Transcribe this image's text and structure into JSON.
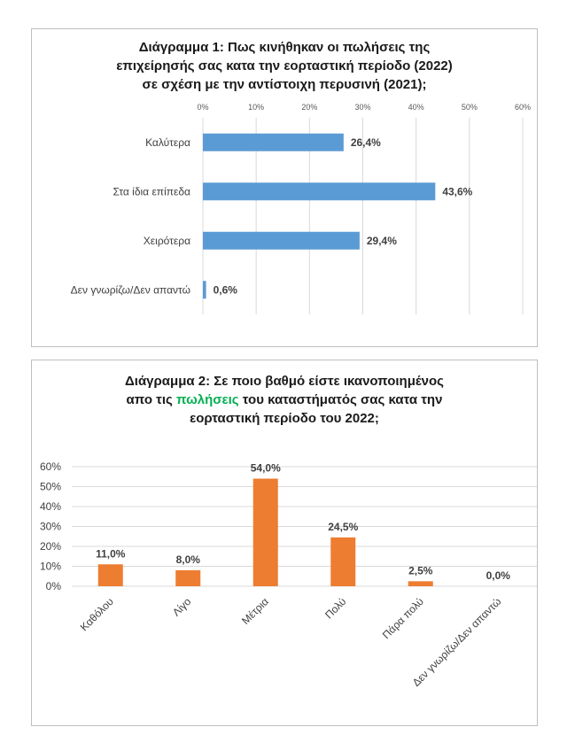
{
  "chart_data": [
    {
      "type": "bar",
      "orientation": "horizontal",
      "title_lines": [
        "Διάγραμμα 1: Πως κινήθηκαν οι πωλήσεις της",
        "επιχείρησής σας κατα την εορταστική περίοδο (2022)",
        "σε σχέση με την αντίστοιχη περυσινή (2021);"
      ],
      "categories": [
        "Καλύτερα",
        "Στα ίδια επίπεδα",
        "Χειρότερα",
        "Δεν γνωρίζω/Δεν απαντώ"
      ],
      "values": [
        26.4,
        43.6,
        29.4,
        0.6
      ],
      "value_labels": [
        "26,4%",
        "43,6%",
        "29,4%",
        "0,6%"
      ],
      "xlim": [
        0,
        60
      ],
      "ticks": [
        0,
        10,
        20,
        30,
        40,
        50,
        60
      ],
      "tick_labels": [
        "0%",
        "10%",
        "20%",
        "30%",
        "40%",
        "50%",
        "60%"
      ],
      "axis_position": "top",
      "grid": true,
      "color": "#5b9bd5"
    },
    {
      "type": "bar",
      "orientation": "vertical",
      "title_lines": [
        "Διάγραμμα 2: Σε ποιο βαθμό είστε ικανοποιημένος",
        "απο τις ",
        "πωλήσεις",
        " του καταστήματός σας κατα την",
        "εορταστική περίοδο του 2022;"
      ],
      "categories": [
        "Καθόλου",
        "Λίγο",
        "Μέτρια",
        "Πολύ",
        "Πάρα πολύ",
        "Δεν γνωρίζω/Δεν απαντώ"
      ],
      "values": [
        11.0,
        8.0,
        54.0,
        24.5,
        2.5,
        0.0
      ],
      "value_labels": [
        "11,0%",
        "8,0%",
        "54,0%",
        "24,5%",
        "2,5%",
        "0,0%"
      ],
      "ylim": [
        0,
        60
      ],
      "ticks": [
        0,
        10,
        20,
        30,
        40,
        50,
        60
      ],
      "tick_labels": [
        "0%",
        "10%",
        "20%",
        "30%",
        "40%",
        "50%",
        "60%"
      ],
      "grid": true,
      "color": "#ed7d31",
      "highlight_color": "#00b050"
    }
  ]
}
